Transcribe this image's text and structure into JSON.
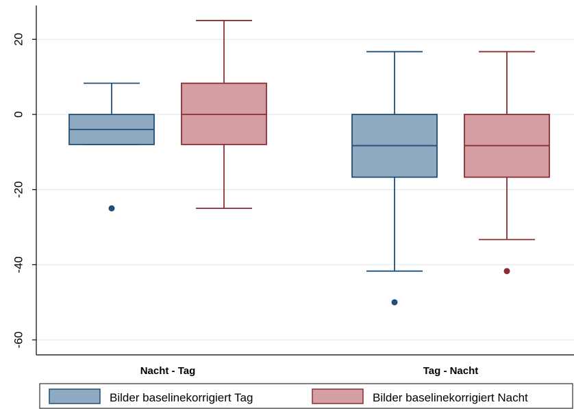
{
  "chart_data": {
    "type": "boxplot",
    "title": "",
    "xlabel": "",
    "ylabel": "",
    "ylim": [
      -64,
      29
    ],
    "yticks": [
      -60,
      -40,
      -20,
      0,
      20
    ],
    "ytick_labels": [
      "-60",
      "-40",
      "-20",
      "0",
      "20"
    ],
    "grid": true,
    "legend_position": "bottom",
    "categories": [
      "Nacht - Tag",
      "Tag - Nacht"
    ],
    "series": [
      {
        "name": "Bilder baselinekorrigiert Tag",
        "color": "#8fa9c1",
        "edge_color": "#1f4e79",
        "boxes": [
          {
            "whisker_low": -8,
            "q1": -8,
            "median": -4,
            "q3": 0,
            "whisker_high": 8.3,
            "outliers": [
              -25
            ]
          },
          {
            "whisker_low": -41.7,
            "q1": -16.7,
            "median": -8.3,
            "q3": 0,
            "whisker_high": 16.7,
            "outliers": [
              -50
            ]
          }
        ]
      },
      {
        "name": "Bilder baselinekorrigiert Nacht",
        "color": "#d49ea3",
        "edge_color": "#8b2c34",
        "boxes": [
          {
            "whisker_low": -25,
            "q1": -8,
            "median": 0,
            "q3": 8.3,
            "whisker_high": 25,
            "outliers": []
          },
          {
            "whisker_low": -33.3,
            "q1": -16.7,
            "median": -8.3,
            "q3": 0,
            "whisker_high": 16.7,
            "outliers": [
              -41.7
            ]
          }
        ]
      }
    ]
  }
}
